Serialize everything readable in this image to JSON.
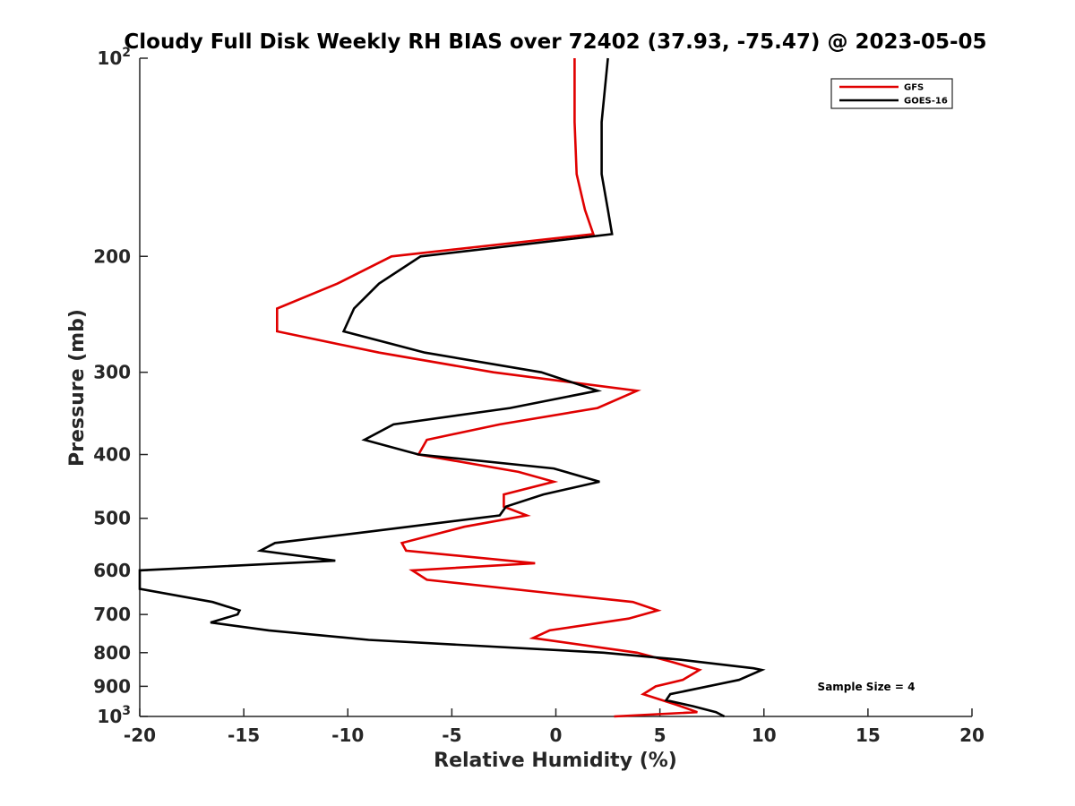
{
  "chart_data": {
    "type": "line",
    "title": "Cloudy Full Disk Weekly RH BIAS over 72402 (37.93, -75.47) @ 2023-05-05",
    "xlabel": "Relative Humidity (%)",
    "ylabel": "Pressure (mb)",
    "xlim": [
      -20,
      20
    ],
    "ylim": [
      100,
      1000
    ],
    "yscale": "log",
    "y_reversed": true,
    "grid": false,
    "legend_position": "top-right",
    "x_ticks": [
      -20,
      -15,
      -10,
      -5,
      0,
      5,
      10,
      15,
      20
    ],
    "x_tick_labels": [
      "-20",
      "-15",
      "-10",
      "-5",
      "0",
      "5",
      "10",
      "15",
      "20"
    ],
    "y_ticks": [
      100,
      200,
      300,
      400,
      500,
      600,
      700,
      800,
      900,
      1000
    ],
    "y_tick_labels": [
      {
        "base": "10",
        "exp": "2"
      },
      {
        "base": "200",
        "exp": ""
      },
      {
        "base": "300",
        "exp": ""
      },
      {
        "base": "400",
        "exp": ""
      },
      {
        "base": "500",
        "exp": ""
      },
      {
        "base": "600",
        "exp": ""
      },
      {
        "base": "700",
        "exp": ""
      },
      {
        "base": "800",
        "exp": ""
      },
      {
        "base": "900",
        "exp": ""
      },
      {
        "base": "10",
        "exp": "3"
      }
    ],
    "annotation": "Sample Size = 4",
    "series": [
      {
        "name": "GFS",
        "color": "#e00000",
        "points": [
          [
            0.9,
            100
          ],
          [
            0.9,
            125
          ],
          [
            1.0,
            150
          ],
          [
            1.4,
            170
          ],
          [
            1.8,
            185
          ],
          [
            -7.9,
            200
          ],
          [
            -10.5,
            220
          ],
          [
            -13.4,
            240
          ],
          [
            -13.4,
            260
          ],
          [
            -8.5,
            280
          ],
          [
            -3.0,
            300
          ],
          [
            3.9,
            320
          ],
          [
            2.0,
            340
          ],
          [
            -2.7,
            360
          ],
          [
            -6.2,
            380
          ],
          [
            -6.6,
            400
          ],
          [
            -1.8,
            425
          ],
          [
            -0.1,
            440
          ],
          [
            -2.5,
            460
          ],
          [
            -2.5,
            480
          ],
          [
            -1.4,
            495
          ],
          [
            -4.4,
            515
          ],
          [
            -7.4,
            545
          ],
          [
            -7.2,
            560
          ],
          [
            -1.0,
            585
          ],
          [
            -6.9,
            600
          ],
          [
            -6.2,
            620
          ],
          [
            -0.2,
            650
          ],
          [
            3.7,
            670
          ],
          [
            4.9,
            690
          ],
          [
            3.5,
            710
          ],
          [
            -0.3,
            740
          ],
          [
            -1.1,
            760
          ],
          [
            3.9,
            800
          ],
          [
            5.5,
            825
          ],
          [
            6.9,
            850
          ],
          [
            6.1,
            880
          ],
          [
            4.8,
            900
          ],
          [
            4.2,
            925
          ],
          [
            5.8,
            960
          ],
          [
            6.8,
            985
          ],
          [
            2.8,
            1000
          ]
        ]
      },
      {
        "name": "GOES-16",
        "color": "#000000",
        "points": [
          [
            2.5,
            100
          ],
          [
            2.2,
            125
          ],
          [
            2.2,
            150
          ],
          [
            2.5,
            170
          ],
          [
            2.7,
            185
          ],
          [
            -6.5,
            200
          ],
          [
            -8.5,
            220
          ],
          [
            -9.7,
            240
          ],
          [
            -10.2,
            260
          ],
          [
            -6.3,
            280
          ],
          [
            -0.7,
            300
          ],
          [
            2.0,
            320
          ],
          [
            -2.2,
            340
          ],
          [
            -7.8,
            360
          ],
          [
            -9.2,
            380
          ],
          [
            -6.6,
            400
          ],
          [
            -0.1,
            420
          ],
          [
            2.1,
            440
          ],
          [
            -0.6,
            460
          ],
          [
            -2.4,
            480
          ],
          [
            -2.7,
            495
          ],
          [
            -9.2,
            525
          ],
          [
            -13.5,
            545
          ],
          [
            -14.2,
            560
          ],
          [
            -10.6,
            580
          ],
          [
            -20.0,
            600
          ],
          [
            -20.0,
            640
          ],
          [
            -16.5,
            670
          ],
          [
            -15.2,
            690
          ],
          [
            -15.3,
            700
          ],
          [
            -16.6,
            720
          ],
          [
            -13.8,
            740
          ],
          [
            -9.0,
            765
          ],
          [
            2.3,
            800
          ],
          [
            6.0,
            820
          ],
          [
            9.5,
            845
          ],
          [
            9.9,
            850
          ],
          [
            8.8,
            880
          ],
          [
            5.5,
            925
          ],
          [
            5.3,
            945
          ],
          [
            6.6,
            965
          ],
          [
            7.7,
            985
          ],
          [
            8.1,
            1000
          ]
        ]
      }
    ]
  }
}
